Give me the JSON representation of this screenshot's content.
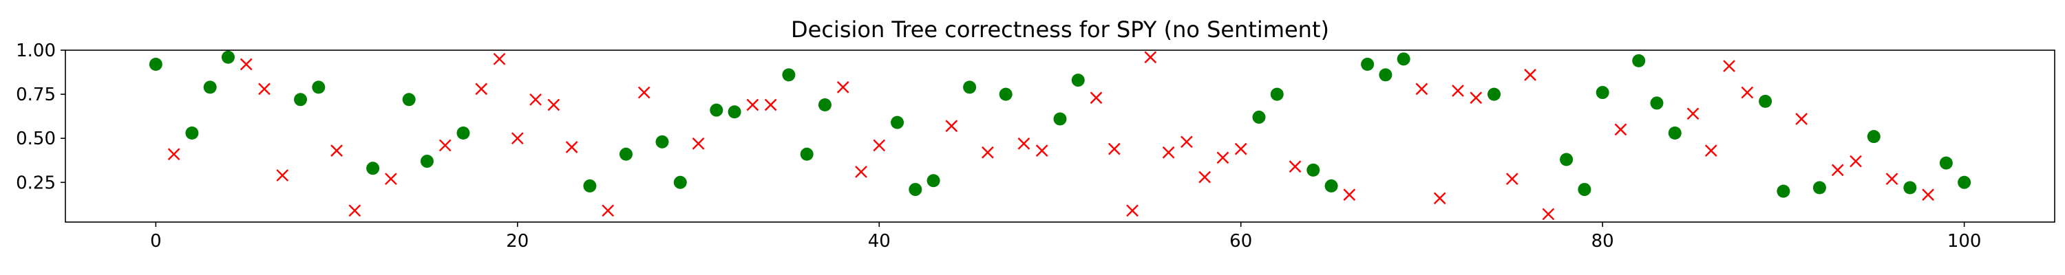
{
  "chart_data": {
    "type": "scatter",
    "title": "Decision Tree correctness for SPY (no Sentiment)",
    "xlabel": "",
    "ylabel": "",
    "xlim": [
      -5,
      105
    ],
    "ylim": [
      0.025,
      1.0
    ],
    "xticks": [
      0,
      20,
      40,
      60,
      80,
      100
    ],
    "yticks": [
      0.25,
      0.5,
      0.75,
      1.0
    ],
    "xtick_labels": [
      "0",
      "20",
      "40",
      "60",
      "80",
      "100"
    ],
    "ytick_labels": [
      "0.25",
      "0.50",
      "0.75",
      "1.00"
    ],
    "grid": false,
    "legend": "none",
    "series": [
      {
        "marker": "circle",
        "color": "#008000",
        "points": [
          [
            0,
            0.92
          ],
          [
            2,
            0.53
          ],
          [
            3,
            0.79
          ],
          [
            4,
            0.96
          ],
          [
            8,
            0.72
          ],
          [
            9,
            0.79
          ],
          [
            12,
            0.33
          ],
          [
            14,
            0.72
          ],
          [
            15,
            0.37
          ],
          [
            17,
            0.53
          ],
          [
            24,
            0.23
          ],
          [
            26,
            0.41
          ],
          [
            28,
            0.48
          ],
          [
            29,
            0.25
          ],
          [
            31,
            0.66
          ],
          [
            32,
            0.65
          ],
          [
            35,
            0.86
          ],
          [
            36,
            0.41
          ],
          [
            37,
            0.69
          ],
          [
            41,
            0.59
          ],
          [
            42,
            0.21
          ],
          [
            43,
            0.26
          ],
          [
            45,
            0.79
          ],
          [
            47,
            0.75
          ],
          [
            50,
            0.61
          ],
          [
            51,
            0.83
          ],
          [
            61,
            0.62
          ],
          [
            62,
            0.75
          ],
          [
            64,
            0.32
          ],
          [
            65,
            0.23
          ],
          [
            67,
            0.92
          ],
          [
            68,
            0.86
          ],
          [
            69,
            0.95
          ],
          [
            74,
            0.75
          ],
          [
            78,
            0.38
          ],
          [
            79,
            0.21
          ],
          [
            80,
            0.76
          ],
          [
            82,
            0.94
          ],
          [
            83,
            0.7
          ],
          [
            84,
            0.53
          ],
          [
            89,
            0.71
          ],
          [
            90,
            0.2
          ],
          [
            92,
            0.22
          ],
          [
            95,
            0.51
          ],
          [
            97,
            0.22
          ],
          [
            99,
            0.36
          ],
          [
            100,
            0.25
          ]
        ]
      },
      {
        "marker": "x",
        "color": "#ff0000",
        "points": [
          [
            1,
            0.41
          ],
          [
            5,
            0.92
          ],
          [
            6,
            0.78
          ],
          [
            7,
            0.29
          ],
          [
            10,
            0.43
          ],
          [
            11,
            0.09
          ],
          [
            13,
            0.27
          ],
          [
            16,
            0.46
          ],
          [
            18,
            0.78
          ],
          [
            19,
            0.95
          ],
          [
            20,
            0.5
          ],
          [
            21,
            0.72
          ],
          [
            22,
            0.69
          ],
          [
            23,
            0.45
          ],
          [
            25,
            0.09
          ],
          [
            27,
            0.76
          ],
          [
            30,
            0.47
          ],
          [
            33,
            0.69
          ],
          [
            34,
            0.69
          ],
          [
            38,
            0.79
          ],
          [
            39,
            0.31
          ],
          [
            40,
            0.46
          ],
          [
            44,
            0.57
          ],
          [
            46,
            0.42
          ],
          [
            48,
            0.47
          ],
          [
            49,
            0.43
          ],
          [
            52,
            0.73
          ],
          [
            53,
            0.44
          ],
          [
            54,
            0.09
          ],
          [
            55,
            0.96
          ],
          [
            56,
            0.42
          ],
          [
            57,
            0.48
          ],
          [
            58,
            0.28
          ],
          [
            59,
            0.39
          ],
          [
            60,
            0.44
          ],
          [
            63,
            0.34
          ],
          [
            66,
            0.18
          ],
          [
            70,
            0.78
          ],
          [
            71,
            0.16
          ],
          [
            72,
            0.77
          ],
          [
            73,
            0.73
          ],
          [
            75,
            0.27
          ],
          [
            76,
            0.86
          ],
          [
            77,
            0.07
          ],
          [
            81,
            0.55
          ],
          [
            85,
            0.64
          ],
          [
            86,
            0.43
          ],
          [
            87,
            0.91
          ],
          [
            88,
            0.76
          ],
          [
            91,
            0.61
          ],
          [
            93,
            0.32
          ],
          [
            94,
            0.37
          ],
          [
            96,
            0.27
          ],
          [
            98,
            0.18
          ]
        ]
      }
    ]
  }
}
